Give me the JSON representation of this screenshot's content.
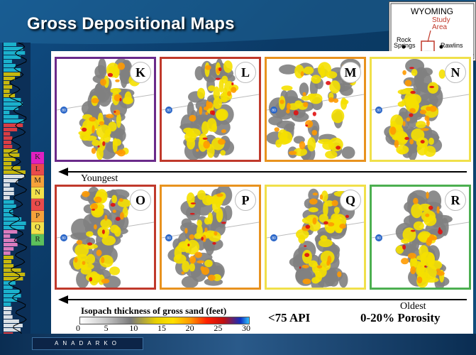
{
  "title": "Gross Depositional Maps",
  "inset": {
    "state": "WYOMING",
    "study_area_line1": "Study",
    "study_area_line2": "Area",
    "city1_line1": "Rock",
    "city1_line2": "Springs",
    "city2": "Rawlins",
    "interstate": "80"
  },
  "intervals": [
    {
      "letter": "K",
      "color": "#e020c0"
    },
    {
      "letter": "L",
      "color": "#e94b4b"
    },
    {
      "letter": "M",
      "color": "#f5a23a"
    },
    {
      "letter": "N",
      "color": "#f2e24a"
    },
    {
      "letter": "O",
      "color": "#e94b4b"
    },
    {
      "letter": "P",
      "color": "#f5a23a"
    },
    {
      "letter": "Q",
      "color": "#f2e24a"
    },
    {
      "letter": "R",
      "color": "#5cc05c"
    }
  ],
  "maps": [
    {
      "letter": "K",
      "border": "#6a2a8a"
    },
    {
      "letter": "L",
      "border": "#c0392b"
    },
    {
      "letter": "M",
      "border": "#e8921e"
    },
    {
      "letter": "N",
      "border": "#f0e04a"
    },
    {
      "letter": "O",
      "border": "#c0392b"
    },
    {
      "letter": "P",
      "border": "#e8921e"
    },
    {
      "letter": "Q",
      "border": "#f0e04a"
    },
    {
      "letter": "R",
      "border": "#4caf50"
    }
  ],
  "interstate_shield_label": "80",
  "youngest_label": "Youngest",
  "oldest_label": "Oldest",
  "legend": {
    "title": "Isopach thickness of gross sand (feet)",
    "ticks": [
      "0",
      "5",
      "10",
      "15",
      "20",
      "25",
      "30"
    ]
  },
  "api_label": "<75 API",
  "porosity_label": "0-20% Porosity",
  "footer": {
    "company": "ANADARKO"
  }
}
